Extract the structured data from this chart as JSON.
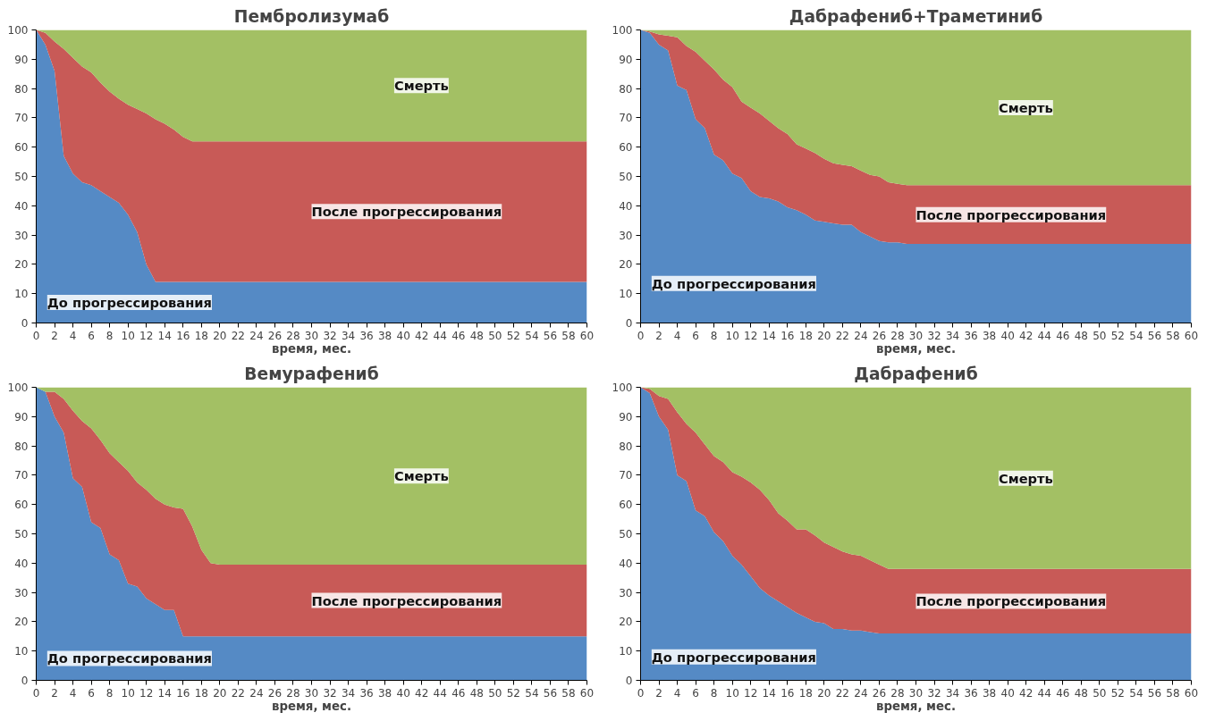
{
  "chart_data": [
    {
      "type": "area",
      "stacked": true,
      "title": "Пембролизумаб",
      "xlabel": "время, мес.",
      "xlim": [
        0,
        60
      ],
      "ylim": [
        0,
        100
      ],
      "xticks": [
        0,
        2,
        4,
        6,
        8,
        10,
        12,
        14,
        16,
        18,
        20,
        22,
        24,
        26,
        28,
        30,
        32,
        34,
        36,
        38,
        40,
        42,
        44,
        46,
        48,
        50,
        52,
        54,
        56,
        58,
        60
      ],
      "yticks": [
        0,
        10,
        20,
        30,
        40,
        50,
        60,
        70,
        80,
        90,
        100
      ],
      "x": [
        0,
        1,
        2,
        3,
        4,
        5,
        6,
        7,
        8,
        9,
        10,
        11,
        12,
        13,
        14,
        15,
        16,
        17,
        60
      ],
      "series": [
        {
          "name": "До прогрессирования",
          "color": "#558ac5",
          "values": [
            100,
            95,
            86,
            57,
            51,
            48,
            47,
            45,
            43,
            41,
            37,
            31,
            20,
            14,
            14,
            14,
            14,
            14,
            14
          ]
        },
        {
          "name": "После прогрессирования",
          "color": "#c85a57",
          "values": [
            0,
            4,
            10,
            36.5,
            39.5,
            39.5,
            38.5,
            37,
            36,
            35.5,
            37.5,
            42,
            51.5,
            55.5,
            54,
            52,
            49.5,
            48,
            48
          ]
        },
        {
          "name": "Смерть",
          "color": "#a3c064",
          "values": [
            0,
            1,
            4,
            6.5,
            9.5,
            12.5,
            14.5,
            18,
            21,
            23.5,
            25.5,
            27,
            28.5,
            30.5,
            32,
            34,
            36.5,
            38,
            38
          ]
        }
      ]
    },
    {
      "type": "area",
      "stacked": true,
      "title": "Дабрафениб+Траметиниб",
      "xlabel": "время, мес.",
      "xlim": [
        0,
        60
      ],
      "ylim": [
        0,
        100
      ],
      "xticks": [
        0,
        2,
        4,
        6,
        8,
        10,
        12,
        14,
        16,
        18,
        20,
        22,
        24,
        26,
        28,
        30,
        32,
        34,
        36,
        38,
        40,
        42,
        44,
        46,
        48,
        50,
        52,
        54,
        56,
        58,
        60
      ],
      "yticks": [
        0,
        10,
        20,
        30,
        40,
        50,
        60,
        70,
        80,
        90,
        100
      ],
      "x": [
        0,
        1,
        2,
        3,
        4,
        5,
        6,
        7,
        8,
        9,
        10,
        11,
        12,
        13,
        14,
        15,
        16,
        17,
        18,
        19,
        20,
        21,
        22,
        23,
        24,
        25,
        26,
        27,
        28,
        29,
        60
      ],
      "series": [
        {
          "name": "До прогрессирования",
          "color": "#558ac5",
          "values": [
            100,
            99,
            95,
            93,
            81,
            79.5,
            69.5,
            66.5,
            57.5,
            55.5,
            51,
            49.5,
            45,
            43,
            42.5,
            41.5,
            39.5,
            38.5,
            37,
            35,
            34.5,
            34,
            33.5,
            33.5,
            31,
            29.5,
            28,
            27.5,
            27.5,
            27,
            27
          ]
        },
        {
          "name": "После прогрессирования",
          "color": "#c85a57",
          "values": [
            0,
            0.5,
            3.5,
            5,
            16.5,
            15,
            23,
            23,
            29,
            27.5,
            29.5,
            26,
            28.5,
            28.5,
            26.5,
            25,
            25,
            22.5,
            22.5,
            23,
            21.5,
            20.5,
            20.5,
            20,
            21,
            21,
            22,
            20.5,
            20,
            20,
            20
          ]
        },
        {
          "name": "Смерть",
          "color": "#a3c064",
          "values": [
            0,
            0.5,
            1.5,
            2,
            2.5,
            5.5,
            7.5,
            10.5,
            13.5,
            17,
            19.5,
            24.5,
            26.5,
            28.5,
            31,
            33.5,
            35.5,
            39,
            40.5,
            42,
            44,
            45.5,
            46,
            46.5,
            48,
            49.5,
            50,
            52,
            52.5,
            53,
            53
          ]
        }
      ]
    },
    {
      "type": "area",
      "stacked": true,
      "title": "Вемурафениб",
      "xlabel": "время, мес.",
      "xlim": [
        0,
        60
      ],
      "ylim": [
        0,
        100
      ],
      "xticks": [
        0,
        2,
        4,
        6,
        8,
        10,
        12,
        14,
        16,
        18,
        20,
        22,
        24,
        26,
        28,
        30,
        32,
        34,
        36,
        38,
        40,
        42,
        44,
        46,
        48,
        50,
        52,
        54,
        56,
        58,
        60
      ],
      "yticks": [
        0,
        10,
        20,
        30,
        40,
        50,
        60,
        70,
        80,
        90,
        100
      ],
      "x": [
        0,
        1,
        2,
        3,
        4,
        5,
        6,
        7,
        8,
        9,
        10,
        11,
        12,
        13,
        14,
        15,
        16,
        17,
        18,
        19,
        20,
        60
      ],
      "series": [
        {
          "name": "До прогрессирования",
          "color": "#558ac5",
          "values": [
            100,
            98.5,
            90,
            84.5,
            69,
            66,
            54,
            52,
            43,
            41,
            33,
            32,
            28,
            26,
            24,
            24,
            15,
            15,
            15,
            15,
            15,
            15
          ]
        },
        {
          "name": "После прогрессирования",
          "color": "#c85a57",
          "values": [
            0,
            0,
            8.5,
            11.5,
            23,
            22.5,
            32,
            30,
            34.5,
            33.5,
            38.5,
            35.5,
            37,
            36,
            36,
            35,
            43.5,
            37.5,
            29.5,
            25,
            24.5,
            24.5
          ]
        },
        {
          "name": "Смерть",
          "color": "#a3c064",
          "values": [
            0,
            1.5,
            1.5,
            4,
            8,
            11.5,
            14,
            18,
            22.5,
            25.5,
            28.5,
            32.5,
            35,
            38,
            40,
            41,
            41.5,
            47.5,
            55.5,
            60,
            60.5,
            60.5
          ]
        }
      ]
    },
    {
      "type": "area",
      "stacked": true,
      "title": "Дабрафениб",
      "xlabel": "время, мес.",
      "xlim": [
        0,
        60
      ],
      "ylim": [
        0,
        100
      ],
      "xticks": [
        0,
        2,
        4,
        6,
        8,
        10,
        12,
        14,
        16,
        18,
        20,
        22,
        24,
        26,
        28,
        30,
        32,
        34,
        36,
        38,
        40,
        42,
        44,
        46,
        48,
        50,
        52,
        54,
        56,
        58,
        60
      ],
      "yticks": [
        0,
        10,
        20,
        30,
        40,
        50,
        60,
        70,
        80,
        90,
        100
      ],
      "x": [
        0,
        1,
        2,
        3,
        4,
        5,
        6,
        7,
        8,
        9,
        10,
        11,
        12,
        13,
        14,
        15,
        16,
        17,
        18,
        19,
        20,
        21,
        22,
        23,
        24,
        25,
        26,
        27,
        60
      ],
      "series": [
        {
          "name": "До прогрессирования",
          "color": "#558ac5",
          "values": [
            100,
            98,
            90,
            85.5,
            70,
            68,
            58,
            56,
            50.5,
            47.5,
            42.5,
            39.5,
            35.5,
            31.5,
            29,
            27,
            25,
            23,
            21.5,
            20,
            19.5,
            17.5,
            17.5,
            17,
            17,
            16.5,
            16,
            16,
            16
          ]
        },
        {
          "name": "После прогрессирования",
          "color": "#c85a57",
          "values": [
            0,
            1.5,
            7,
            10.5,
            21.5,
            19.5,
            26.5,
            24.5,
            26,
            27,
            28.5,
            30,
            32,
            33.5,
            32.5,
            30,
            29.5,
            28.5,
            30,
            29.5,
            27.5,
            28,
            26.5,
            26,
            25.5,
            24.5,
            23.5,
            22,
            22
          ]
        },
        {
          "name": "Смерть",
          "color": "#a3c064",
          "values": [
            0,
            0.5,
            3,
            4,
            8.5,
            12.5,
            15.5,
            19.5,
            23.5,
            25.5,
            29,
            30.5,
            32.5,
            35,
            38.5,
            43,
            45.5,
            48.5,
            48.5,
            50.5,
            53,
            54.5,
            56,
            57,
            57.5,
            59,
            60.5,
            62,
            62
          ]
        }
      ]
    }
  ]
}
